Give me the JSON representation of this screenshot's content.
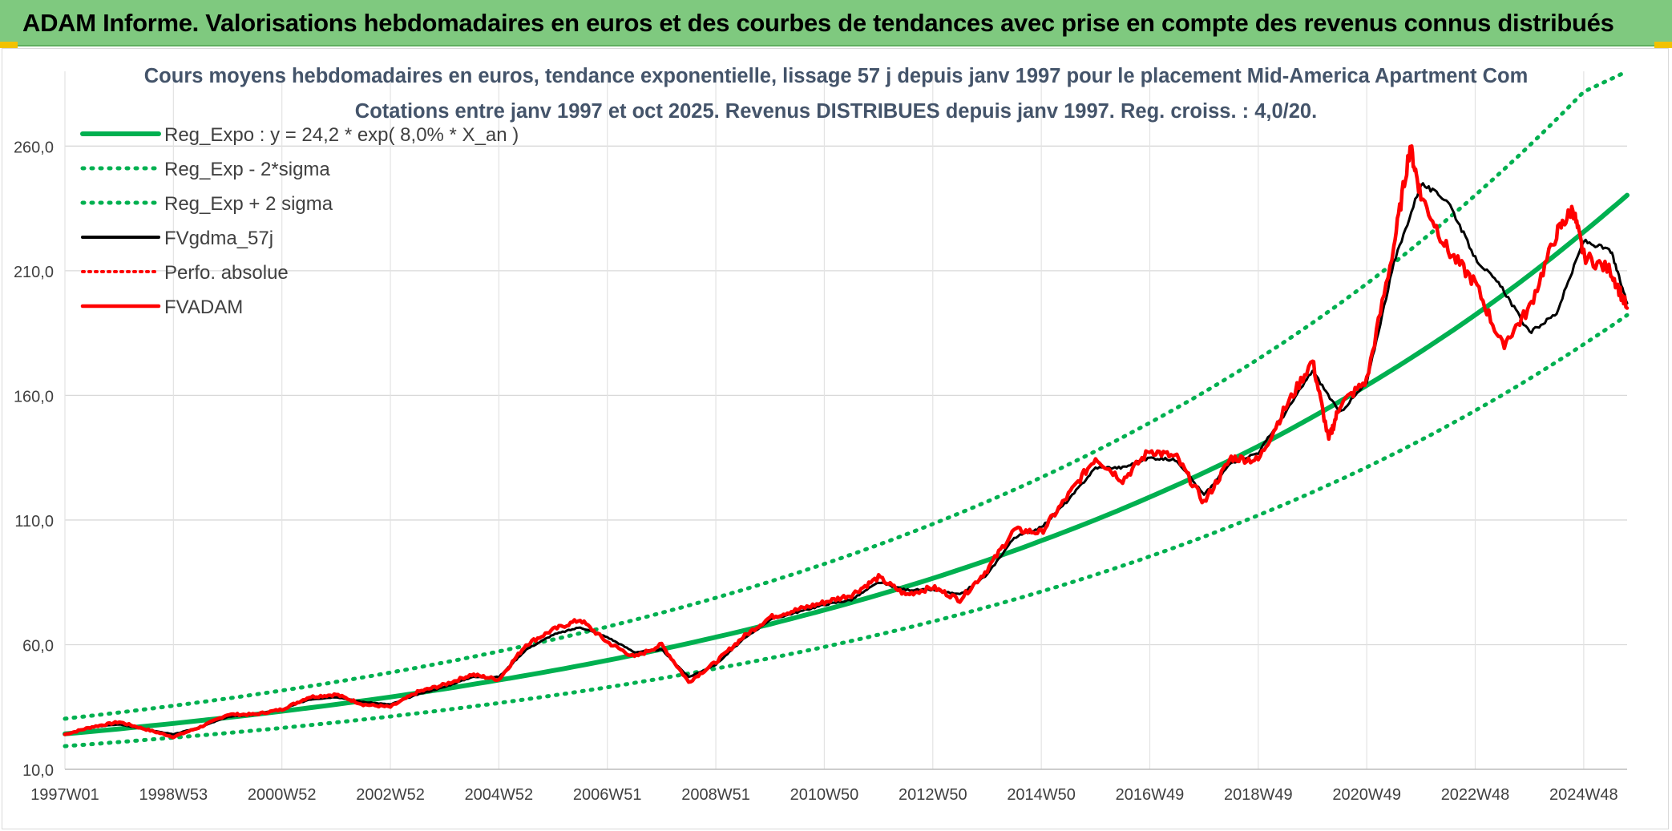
{
  "banner": {
    "title": "ADAM Informe. Valorisations hebdomadaires en euros et des courbes de tendances avec prise en compte des revenus connus distribués"
  },
  "chart_data": {
    "type": "line",
    "title": "Cours moyens hebdomadaires en euros, tendance exponentielle, lissage 57 j depuis janv 1997 pour le placement Mid-America Apartment Com",
    "subtitle": "Cotations entre janv 1997 et oct 2025. Revenus DISTRIBUES depuis janv 1997. Reg. croiss. : 4,0/20.",
    "xlabel": "",
    "ylabel": "",
    "x_range": [
      1997.0,
      2025.8
    ],
    "ylim": [
      10,
      290
    ],
    "y_ticks": [
      "10,0",
      "60,0",
      "110,0",
      "160,0",
      "210,0",
      "260,0"
    ],
    "y_tick_values": [
      10,
      60,
      110,
      160,
      210,
      260
    ],
    "x_ticks": [
      "1997W01",
      "1998W53",
      "2000W52",
      "2002W52",
      "2004W52",
      "2006W51",
      "2008W51",
      "2010W50",
      "2012W50",
      "2014W50",
      "2016W49",
      "2018W49",
      "2020W49",
      "2022W48",
      "2024W48"
    ],
    "x_tick_years": [
      1997.0,
      1999.0,
      2001.0,
      2003.0,
      2005.0,
      2007.0,
      2009.0,
      2011.0,
      2013.0,
      2015.0,
      2017.0,
      2019.0,
      2021.0,
      2023.0,
      2025.0
    ],
    "grid": true,
    "legend_position": "top-left",
    "colors": {
      "green": "#00b050",
      "black": "#000000",
      "red": "#ff0000"
    },
    "series": [
      {
        "name": "Reg_Expo : y = 24,2 * exp( 8,0% *  X_an )",
        "style": "solid-thick",
        "x": [
          1997.0,
          1999.0,
          2001.0,
          2003.0,
          2005.0,
          2007.0,
          2009.0,
          2011.0,
          2013.0,
          2015.0,
          2017.0,
          2019.0,
          2021.0,
          2023.0,
          2025.0,
          2025.8
        ],
        "values": [
          24.2,
          28.4,
          33.3,
          39.0,
          45.8,
          53.7,
          63.0,
          73.9,
          86.6,
          101.7,
          119.2,
          139.6,
          164.0,
          192.3,
          225.6,
          240.3
        ]
      },
      {
        "name": "Reg_Exp - 2*sigma",
        "style": "dotted-green",
        "x": [
          1997.0,
          1999.0,
          2001.0,
          2003.0,
          2005.0,
          2007.0,
          2009.0,
          2011.0,
          2013.0,
          2015.0,
          2017.0,
          2019.0,
          2021.0,
          2023.0,
          2025.0,
          2025.8
        ],
        "values": [
          19.3,
          22.7,
          26.6,
          31.2,
          36.6,
          42.9,
          50.4,
          59.1,
          69.3,
          81.3,
          95.4,
          111.9,
          131.2,
          153.9,
          180.5,
          192.2
        ]
      },
      {
        "name": "Reg_Exp + 2 sigma",
        "style": "dotted-green",
        "x": [
          1997.0,
          1999.0,
          2001.0,
          2003.0,
          2005.0,
          2007.0,
          2009.0,
          2011.0,
          2013.0,
          2015.0,
          2017.0,
          2019.0,
          2021.0,
          2023.0,
          2025.0,
          2025.8
        ],
        "values": [
          30.3,
          35.5,
          41.6,
          48.8,
          57.3,
          67.2,
          78.8,
          92.4,
          108.4,
          127.1,
          149.0,
          174.6,
          204.8,
          240.3,
          281.8,
          290.0
        ]
      },
      {
        "name": "FVgdma_57j",
        "style": "solid-black",
        "x": [
          1997.0,
          1997.5,
          1998.0,
          1998.5,
          1999.0,
          1999.5,
          2000.0,
          2000.5,
          2001.0,
          2001.5,
          2002.0,
          2002.5,
          2003.0,
          2003.5,
          2004.0,
          2004.5,
          2005.0,
          2005.5,
          2006.0,
          2006.5,
          2007.0,
          2007.5,
          2008.0,
          2008.5,
          2009.0,
          2009.5,
          2010.0,
          2010.5,
          2011.0,
          2011.5,
          2012.0,
          2012.5,
          2013.0,
          2013.5,
          2014.0,
          2014.5,
          2015.0,
          2015.5,
          2016.0,
          2016.5,
          2017.0,
          2017.5,
          2018.0,
          2018.5,
          2019.0,
          2019.5,
          2020.0,
          2020.5,
          2021.0,
          2021.5,
          2022.0,
          2022.5,
          2023.0,
          2023.5,
          2024.0,
          2024.5,
          2025.0,
          2025.5,
          2025.8
        ],
        "values": [
          24,
          27,
          28,
          26,
          24,
          27,
          31,
          32,
          34,
          38,
          39,
          37,
          36,
          40,
          43,
          47,
          47,
          58,
          64,
          67,
          63,
          57,
          58,
          47,
          52,
          62,
          70,
          73,
          76,
          78,
          85,
          82,
          82,
          80,
          88,
          103,
          107,
          118,
          131,
          131,
          135,
          134,
          120,
          133,
          137,
          153,
          170,
          153,
          165,
          213,
          245,
          238,
          215,
          203,
          185,
          193,
          222,
          218,
          197
        ]
      },
      {
        "name": "Perfo. absolue",
        "style": "dotted-red",
        "x": [],
        "values": []
      },
      {
        "name": "FVADAM",
        "style": "solid-red",
        "x": [
          1997.0,
          1997.5,
          1998.0,
          1998.5,
          1999.0,
          1999.5,
          2000.0,
          2000.5,
          2001.0,
          2001.5,
          2002.0,
          2002.5,
          2003.0,
          2003.5,
          2004.0,
          2004.5,
          2005.0,
          2005.5,
          2006.0,
          2006.5,
          2007.0,
          2007.5,
          2008.0,
          2008.5,
          2009.0,
          2009.5,
          2010.0,
          2010.5,
          2011.0,
          2011.5,
          2012.0,
          2012.5,
          2013.0,
          2013.5,
          2014.0,
          2014.5,
          2015.0,
          2015.5,
          2016.0,
          2016.5,
          2017.0,
          2017.5,
          2018.0,
          2018.5,
          2019.0,
          2019.5,
          2020.0,
          2020.3,
          2020.5,
          2021.0,
          2021.5,
          2021.8,
          2022.0,
          2022.5,
          2023.0,
          2023.5,
          2024.0,
          2024.5,
          2024.8,
          2025.0,
          2025.5,
          2025.8
        ],
        "values": [
          24,
          27,
          29,
          26,
          23,
          27,
          32,
          32,
          34,
          39,
          40,
          36,
          35,
          41,
          44,
          48,
          46,
          60,
          66,
          70,
          61,
          55,
          60,
          45,
          53,
          63,
          71,
          74,
          77,
          80,
          87,
          80,
          83,
          78,
          90,
          106,
          105,
          120,
          135,
          126,
          138,
          135,
          117,
          135,
          134,
          155,
          174,
          142,
          156,
          166,
          220,
          260,
          240,
          218,
          205,
          180,
          195,
          225,
          235,
          216,
          210,
          195
        ]
      }
    ]
  }
}
